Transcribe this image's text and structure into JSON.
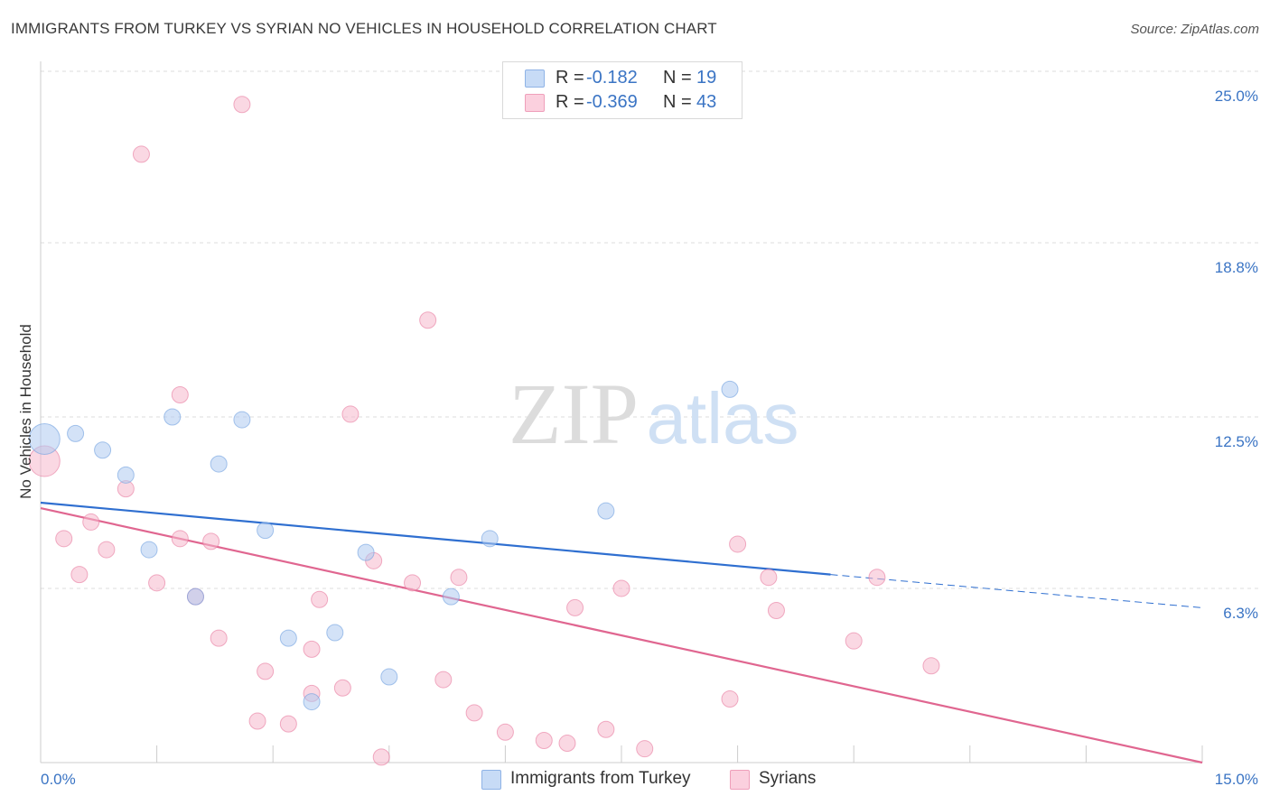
{
  "header": {
    "title": "IMMIGRANTS FROM TURKEY VS SYRIAN NO VEHICLES IN HOUSEHOLD CORRELATION CHART",
    "source": "Source: ZipAtlas.com"
  },
  "watermark": {
    "zip": "ZIP",
    "atlas": "atlas"
  },
  "legend": {
    "rows": [
      {
        "r_label": "R =",
        "r_value": "-0.182",
        "n_label": "N =",
        "n_value": "19",
        "color": "#aecbf1"
      },
      {
        "r_label": "R =",
        "r_value": "-0.369",
        "n_label": "N =",
        "n_value": "43",
        "color": "#f6b8cc"
      }
    ]
  },
  "bottom_legend": {
    "items": [
      {
        "label": "Immigrants from Turkey",
        "color": "#aecbf1"
      },
      {
        "label": "Syrians",
        "color": "#f6b8cc"
      }
    ]
  },
  "chart_data": {
    "type": "scatter",
    "title": "IMMIGRANTS FROM TURKEY VS SYRIAN NO VEHICLES IN HOUSEHOLD CORRELATION CHART",
    "xlabel": "",
    "ylabel": "No Vehicles in Household",
    "xlim": [
      0,
      15
    ],
    "ylim": [
      0,
      25
    ],
    "x_tick_labels": [
      "0.0%",
      "15.0%"
    ],
    "y_ticks": [
      6.3,
      12.5,
      18.8,
      25.0
    ],
    "y_tick_labels": [
      "6.3%",
      "12.5%",
      "18.8%",
      "25.0%"
    ],
    "grid": true,
    "legend_position": "top-center",
    "series": [
      {
        "name": "Immigrants from Turkey",
        "color": "#6fa0df",
        "fill": "#aecbf1",
        "points": [
          [
            0.05,
            11.7
          ],
          [
            0.45,
            11.9
          ],
          [
            0.8,
            11.3
          ],
          [
            1.1,
            10.4
          ],
          [
            1.7,
            12.5
          ],
          [
            2.6,
            12.4
          ],
          [
            2.3,
            10.8
          ],
          [
            1.4,
            7.7
          ],
          [
            2.9,
            8.4
          ],
          [
            4.2,
            7.6
          ],
          [
            5.8,
            8.1
          ],
          [
            7.3,
            9.1
          ],
          [
            8.9,
            13.5
          ],
          [
            2.0,
            6.0
          ],
          [
            3.2,
            4.5
          ],
          [
            3.8,
            4.7
          ],
          [
            4.5,
            3.1
          ],
          [
            3.5,
            2.2
          ],
          [
            5.3,
            6.0
          ]
        ],
        "sizes": [
          3,
          1,
          1,
          1,
          1,
          1,
          1,
          1,
          1,
          1,
          1,
          1,
          1,
          1,
          1,
          1,
          1,
          1,
          1
        ],
        "trend": {
          "x": [
            0,
            10.2
          ],
          "y": [
            9.4,
            6.8
          ]
        },
        "trend_extension": {
          "x": [
            10.2,
            15
          ],
          "y": [
            6.8,
            5.6
          ]
        }
      },
      {
        "name": "Syrians",
        "color": "#e8799e",
        "fill": "#f6b8cc",
        "points": [
          [
            0.05,
            10.9
          ],
          [
            2.6,
            23.8
          ],
          [
            1.3,
            22.0
          ],
          [
            5.0,
            16.0
          ],
          [
            1.8,
            13.3
          ],
          [
            4.0,
            12.6
          ],
          [
            1.1,
            9.9
          ],
          [
            0.65,
            8.7
          ],
          [
            0.3,
            8.1
          ],
          [
            0.85,
            7.7
          ],
          [
            1.8,
            8.1
          ],
          [
            2.2,
            8.0
          ],
          [
            0.5,
            6.8
          ],
          [
            1.5,
            6.5
          ],
          [
            2.0,
            6.0
          ],
          [
            4.3,
            7.3
          ],
          [
            4.8,
            6.5
          ],
          [
            5.4,
            6.7
          ],
          [
            3.6,
            5.9
          ],
          [
            6.9,
            5.6
          ],
          [
            7.5,
            6.3
          ],
          [
            9.0,
            7.9
          ],
          [
            9.4,
            6.7
          ],
          [
            10.8,
            6.7
          ],
          [
            9.5,
            5.5
          ],
          [
            2.3,
            4.5
          ],
          [
            3.5,
            4.1
          ],
          [
            10.5,
            4.4
          ],
          [
            11.5,
            3.5
          ],
          [
            2.9,
            3.3
          ],
          [
            5.2,
            3.0
          ],
          [
            3.5,
            2.5
          ],
          [
            3.9,
            2.7
          ],
          [
            8.9,
            2.3
          ],
          [
            2.8,
            1.5
          ],
          [
            3.2,
            1.4
          ],
          [
            5.6,
            1.8
          ],
          [
            6.0,
            1.1
          ],
          [
            6.5,
            0.8
          ],
          [
            6.8,
            0.7
          ],
          [
            7.3,
            1.2
          ],
          [
            7.8,
            0.5
          ],
          [
            4.4,
            0.2
          ]
        ],
        "sizes": [
          3,
          1,
          1,
          1,
          1,
          1,
          1,
          1,
          1,
          1,
          1,
          1,
          1,
          1,
          1,
          1,
          1,
          1,
          1,
          1,
          1,
          1,
          1,
          1,
          1,
          1,
          1,
          1,
          1,
          1,
          1,
          1,
          1,
          1,
          1,
          1,
          1,
          1,
          1,
          1,
          1,
          1,
          1
        ],
        "trend": {
          "x": [
            0,
            15
          ],
          "y": [
            9.2,
            0.0
          ]
        }
      }
    ]
  }
}
